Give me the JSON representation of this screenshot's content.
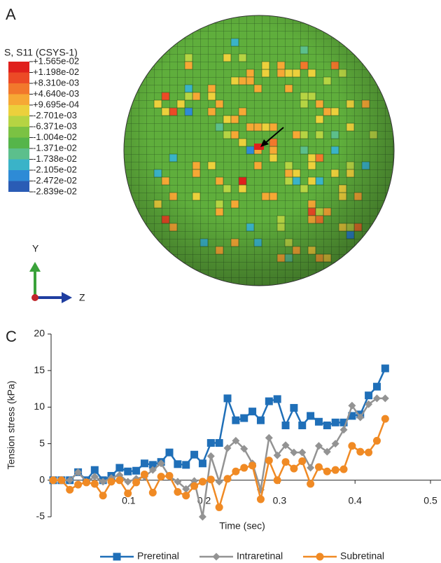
{
  "panel_a": {
    "label": "A",
    "legend_title": "S, S11 (CSYS-1)",
    "legend_labels": [
      "+1.565e-02",
      "+1.198e-02",
      "+8.310e-03",
      "+4.640e-03",
      "+9.695e-04",
      "-2.701e-03",
      "-6.371e-03",
      "-1.004e-02",
      "-1.371e-02",
      "-1.738e-02",
      "-2.105e-02",
      "-2.472e-02",
      "-2.839e-02"
    ],
    "legend_colors": [
      "#e0201c",
      "#ec4a26",
      "#f2782c",
      "#f6a835",
      "#ecd03c",
      "#b6d443",
      "#7bc243",
      "#55b54a",
      "#5cbf8c",
      "#3ab3c8",
      "#2e8bd6",
      "#2a5cb5"
    ],
    "axis_y": "Y",
    "axis_z": "Z"
  },
  "chart_data": {
    "type": "line",
    "label": "C",
    "xlabel": "Time (sec)",
    "ylabel": "Tension stress (kPa)",
    "x": [
      0,
      0.011,
      0.022,
      0.033,
      0.044,
      0.055,
      0.066,
      0.077,
      0.088,
      0.099,
      0.11,
      0.121,
      0.132,
      0.143,
      0.154,
      0.165,
      0.176,
      0.187,
      0.198,
      0.209,
      0.22,
      0.231,
      0.242,
      0.253,
      0.264,
      0.275,
      0.286,
      0.297,
      0.308,
      0.319,
      0.33,
      0.341,
      0.352,
      0.363,
      0.374,
      0.385,
      0.396,
      0.407,
      0.418,
      0.429,
      0.44
    ],
    "xlim": [
      0,
      0.515
    ],
    "xticks": [
      0.1,
      0.2,
      0.3,
      0.4,
      0.5
    ],
    "ylim": [
      -5,
      20
    ],
    "yticks": [
      -5,
      0,
      5,
      10,
      15,
      20
    ],
    "legend": "bottom",
    "series": [
      {
        "name": "Preretinal",
        "color": "#1f6fb8",
        "marker": "square",
        "values": [
          0,
          0,
          0,
          1.1,
          0,
          1.4,
          0,
          0.6,
          1.7,
          1.2,
          1.3,
          2.3,
          2.1,
          2.5,
          3.8,
          2.2,
          2.1,
          3.5,
          2.3,
          5.1,
          5.1,
          11.2,
          8.2,
          8.5,
          9.4,
          8.2,
          10.8,
          11.1,
          7.5,
          9.9,
          7.5,
          8.8,
          8,
          7.5,
          7.9,
          7.9,
          8.8,
          9,
          11.6,
          12.8,
          15.3
        ]
      },
      {
        "name": "Intraretinal",
        "color": "#939393",
        "marker": "diamond",
        "values": [
          0,
          0,
          0,
          1.1,
          -0.2,
          0.5,
          -0.2,
          0.3,
          0.7,
          -0.2,
          0.2,
          0.5,
          1.4,
          2.3,
          0.5,
          -0.2,
          -1.2,
          -0.1,
          -5,
          3.3,
          -0.2,
          4.4,
          5.4,
          4.3,
          2.3,
          -1.3,
          5.8,
          3.4,
          4.8,
          3.8,
          3.8,
          1.7,
          4.7,
          3.9,
          5,
          6.9,
          10.2,
          8.6,
          10.4,
          11.2,
          11.2
        ]
      },
      {
        "name": "Subretinal",
        "color": "#f08a24",
        "marker": "circle",
        "values": [
          0,
          0,
          -1.3,
          -0.6,
          -0.3,
          -0.5,
          -2.1,
          -0.2,
          0,
          -1.8,
          -0.3,
          0.8,
          -1.7,
          0.5,
          0.6,
          -1.6,
          -2.1,
          -0.8,
          -0.2,
          0.1,
          -3.7,
          0.2,
          1.2,
          1.7,
          2,
          -2.6,
          2.7,
          0,
          2.5,
          1.6,
          2.6,
          -0.5,
          1.8,
          1.2,
          1.4,
          1.5,
          4.7,
          3.9,
          3.8,
          5.4,
          8.4
        ]
      }
    ]
  }
}
